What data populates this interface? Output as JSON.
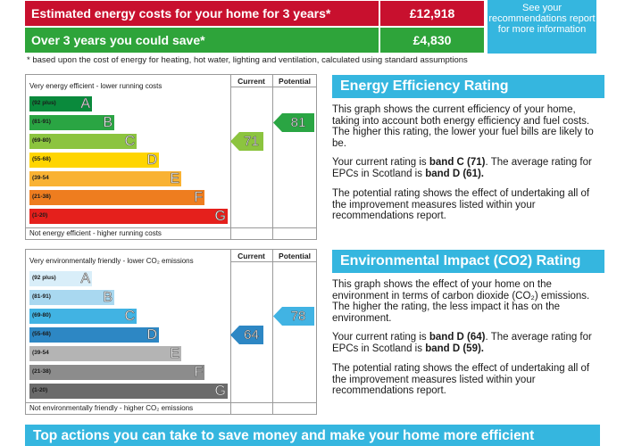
{
  "costs": {
    "row1": {
      "label": "Estimated energy costs for your home for 3 years*",
      "value": "£12,918"
    },
    "row2": {
      "label": "Over 3 years you could save*",
      "value": "£4,830"
    },
    "see_box": "See your recommendations report for more information",
    "footnote": "* based upon the cost of energy for heating, hot water, lighting and ventilation, calculated using standard assumptions"
  },
  "energy_chart": {
    "top_text": "Very energy efficient - lower running costs",
    "bottom_text": "Not energy efficient - higher running costs",
    "col_current": "Current",
    "col_potential": "Potential",
    "bands": [
      {
        "range": "(92 plus)",
        "letter": "A",
        "color": "#0a8a3c"
      },
      {
        "range": "(81-91)",
        "letter": "B",
        "color": "#2aa543"
      },
      {
        "range": "(69-80)",
        "letter": "C",
        "color": "#8cc43f"
      },
      {
        "range": "(55-68)",
        "letter": "D",
        "color": "#ffd500"
      },
      {
        "range": "(39-54",
        "letter": "E",
        "color": "#f9b233"
      },
      {
        "range": "(21-38)",
        "letter": "F",
        "color": "#ee7d1f"
      },
      {
        "range": "(1-20)",
        "letter": "G",
        "color": "#e5201c"
      }
    ],
    "current": {
      "value": "71",
      "color": "#8cc43f"
    },
    "potential": {
      "value": "81",
      "color": "#2aa543"
    }
  },
  "environment_chart": {
    "top_text": "Very environmentally friendly - lower CO₂ emissions",
    "bottom_text": "Not environmentally friendly - higher CO₂ emissions",
    "col_current": "Current",
    "col_potential": "Potential",
    "bands": [
      {
        "range": "(92 plus)",
        "letter": "A",
        "color": "#d9eef9"
      },
      {
        "range": "(81-91)",
        "letter": "B",
        "color": "#a9d8f0"
      },
      {
        "range": "(69-80)",
        "letter": "C",
        "color": "#41b3e3"
      },
      {
        "range": "(55-68)",
        "letter": "D",
        "color": "#2d87c4"
      },
      {
        "range": "(39-54",
        "letter": "E",
        "color": "#b4b4b4"
      },
      {
        "range": "(21-38)",
        "letter": "F",
        "color": "#8c8c8c"
      },
      {
        "range": "(1-20)",
        "letter": "G",
        "color": "#6b6b6b"
      }
    ],
    "current": {
      "value": "64",
      "color": "#2d87c4"
    },
    "potential": {
      "value": "78",
      "color": "#41b3e3"
    }
  },
  "eer_panel": {
    "title": "Energy Efficiency Rating",
    "p1": "This graph shows the current efficiency of your home, taking into account both energy efficiency and fuel costs. The higher this rating, the lower your fuel bills are likely to be.",
    "p2_a": "Your current rating is ",
    "p2_b": "band C (71)",
    "p2_c": ". The average rating for EPCs in Scotland is ",
    "p2_d": "band D (61).",
    "p3": "The potential rating shows the effect of undertaking all of the improvement measures listed within your recommendations report."
  },
  "eir_panel": {
    "title": "Environmental Impact (CO2) Rating",
    "p1": "This graph shows the effect of your home on the environment in terms of carbon dioxide (CO₂) emissions. The higher the rating, the less impact it has on the environment.",
    "p2_a": "Your current rating is ",
    "p2_b": "band D (64)",
    "p2_c": ". The average rating for EPCs in Scotland is ",
    "p2_d": "band D (59).",
    "p3": "The potential rating shows the effect of undertaking all of the improvement measures listed within your recommendations report."
  },
  "bottom_bar": "Top actions you can take to save money and make your home more efficient"
}
